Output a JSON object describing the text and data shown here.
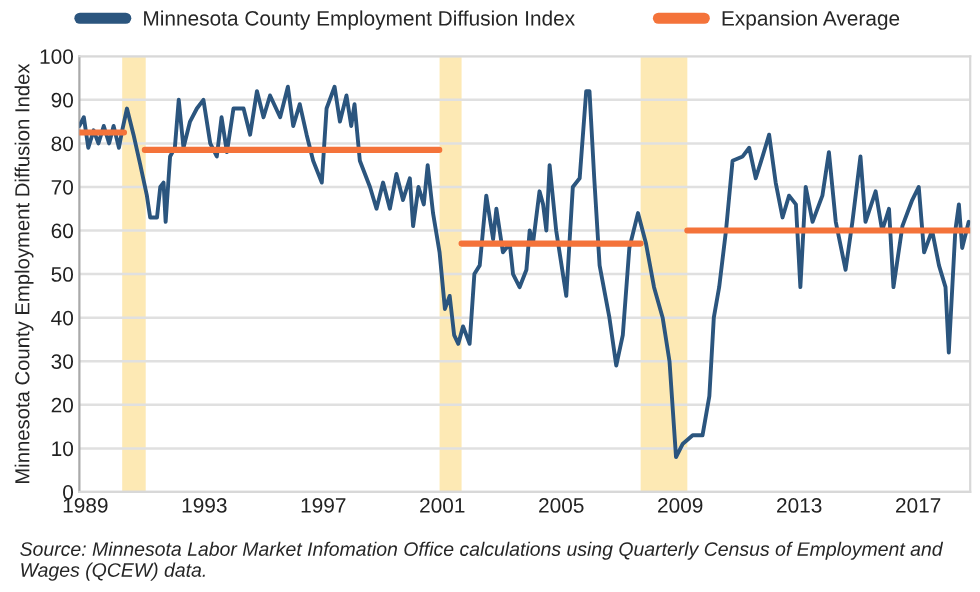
{
  "chart_data": {
    "type": "line",
    "ylabel": "Minnesota County Employment Diffusion Index",
    "xlim": [
      1988.8,
      2018.75
    ],
    "xticks": [
      1989,
      1993,
      1997,
      2001,
      2005,
      2009,
      2013,
      2017
    ],
    "ylim": [
      0,
      100
    ],
    "yticks": [
      0,
      10,
      20,
      30,
      40,
      50,
      60,
      70,
      80,
      90,
      100
    ],
    "grid": "y",
    "legend": "top",
    "series": [
      {
        "name": "Minnesota County Employment Diffusion Index",
        "color": "#2b557e",
        "x": [
          1988.8,
          1988.95,
          1989.1,
          1989.28,
          1989.44,
          1989.62,
          1989.8,
          1989.95,
          1990.13,
          1990.24,
          1990.4,
          1990.62,
          1990.85,
          1991.07,
          1991.18,
          1991.41,
          1991.52,
          1991.63,
          1991.7,
          1991.85,
          1992.01,
          1992.14,
          1992.3,
          1992.52,
          1992.75,
          1992.97,
          1993.2,
          1993.42,
          1993.58,
          1993.76,
          1993.98,
          1994.32,
          1994.54,
          1994.77,
          1994.99,
          1995.21,
          1995.55,
          1995.81,
          1995.99,
          1996.21,
          1996.44,
          1996.66,
          1996.95,
          1997.11,
          1997.38,
          1997.56,
          1997.78,
          1997.94,
          1998.05,
          1998.23,
          1998.57,
          1998.79,
          1999.01,
          1999.24,
          1999.46,
          1999.68,
          1999.91,
          2000.02,
          2000.2,
          2000.38,
          2000.51,
          2000.69,
          2000.91,
          2001.09,
          2001.25,
          2001.4,
          2001.54,
          2001.7,
          2001.92,
          2002.08,
          2002.26,
          2002.48,
          2002.71,
          2002.82,
          2003.04,
          2003.27,
          2003.38,
          2003.6,
          2003.83,
          2003.94,
          2004.05,
          2004.27,
          2004.39,
          2004.5,
          2004.61,
          2004.83,
          2005.17,
          2005.39,
          2005.62,
          2005.84,
          2005.95,
          2006.11,
          2006.29,
          2006.62,
          2006.85,
          2007.07,
          2007.29,
          2007.58,
          2007.85,
          2008.12,
          2008.41,
          2008.64,
          2008.86,
          2009.08,
          2009.42,
          2009.75,
          2009.98,
          2010.13,
          2010.31,
          2010.54,
          2010.76,
          2011.1,
          2011.32,
          2011.54,
          2011.77,
          2011.99,
          2012.21,
          2012.44,
          2012.66,
          2012.89,
          2013.04,
          2013.22,
          2013.45,
          2013.78,
          2014.0,
          2014.23,
          2014.56,
          2014.79,
          2015.06,
          2015.23,
          2015.57,
          2015.79,
          2016.02,
          2016.17,
          2016.47,
          2016.8,
          2017.02,
          2017.2,
          2017.47,
          2017.7,
          2017.92,
          2018.03,
          2018.25,
          2018.37,
          2018.48,
          2018.7
        ],
        "values": [
          84,
          86,
          79,
          83,
          80,
          84,
          80,
          84,
          79,
          83,
          88,
          82,
          75,
          68,
          63,
          63,
          70,
          71,
          62,
          77,
          79,
          90,
          79,
          85,
          88,
          90,
          80,
          77,
          86,
          78,
          88,
          88,
          82,
          92,
          86,
          91,
          86,
          93,
          84,
          89,
          82,
          76,
          71,
          88,
          93,
          85,
          91,
          84,
          89,
          76,
          70,
          65,
          71,
          65,
          73,
          67,
          72,
          61,
          70,
          66,
          75,
          64,
          55,
          42,
          45,
          36,
          34,
          38,
          34,
          50,
          52,
          68,
          58,
          65,
          55,
          57,
          50,
          47,
          51,
          60,
          57,
          69,
          66,
          60,
          75,
          60,
          45,
          70,
          72,
          92,
          92,
          72,
          52,
          40,
          29,
          36,
          56,
          64,
          57,
          47,
          40,
          30,
          8,
          11,
          13,
          13,
          22,
          40,
          47,
          60,
          76,
          77,
          79,
          72,
          77,
          82,
          71,
          63,
          68,
          66,
          47,
          70,
          62,
          68,
          78,
          62,
          51,
          62,
          77,
          62,
          69,
          60,
          65,
          47,
          61,
          67,
          70,
          55,
          60,
          52,
          47,
          32,
          60,
          66,
          56,
          62
        ]
      },
      {
        "name": "Expansion Average",
        "color": "#f4733a",
        "x": [
          1988.8,
          1990.3,
          1990.65,
          1991.0,
          2000.9,
          2001.3,
          2001.65,
          2007.67,
          2008.5,
          2009.24,
          2018.75
        ],
        "values": [
          82.5,
          82.5,
          null,
          78.5,
          78.5,
          null,
          57,
          57,
          null,
          60,
          60
        ]
      }
    ],
    "bands": [
      {
        "axis": "x",
        "from": 1990.24,
        "to": 1991.03,
        "color": "#fde9b4"
      },
      {
        "axis": "x",
        "from": 2000.91,
        "to": 2001.65,
        "color": "#fde9b4"
      },
      {
        "axis": "x",
        "from": 2007.67,
        "to": 2009.24,
        "color": "#fde9b4"
      }
    ],
    "annotations": [
      "Source: Minnesota Labor Market Infomation Office calculations using Quarterly Census of Employment and Wages (QCEW) data."
    ]
  }
}
